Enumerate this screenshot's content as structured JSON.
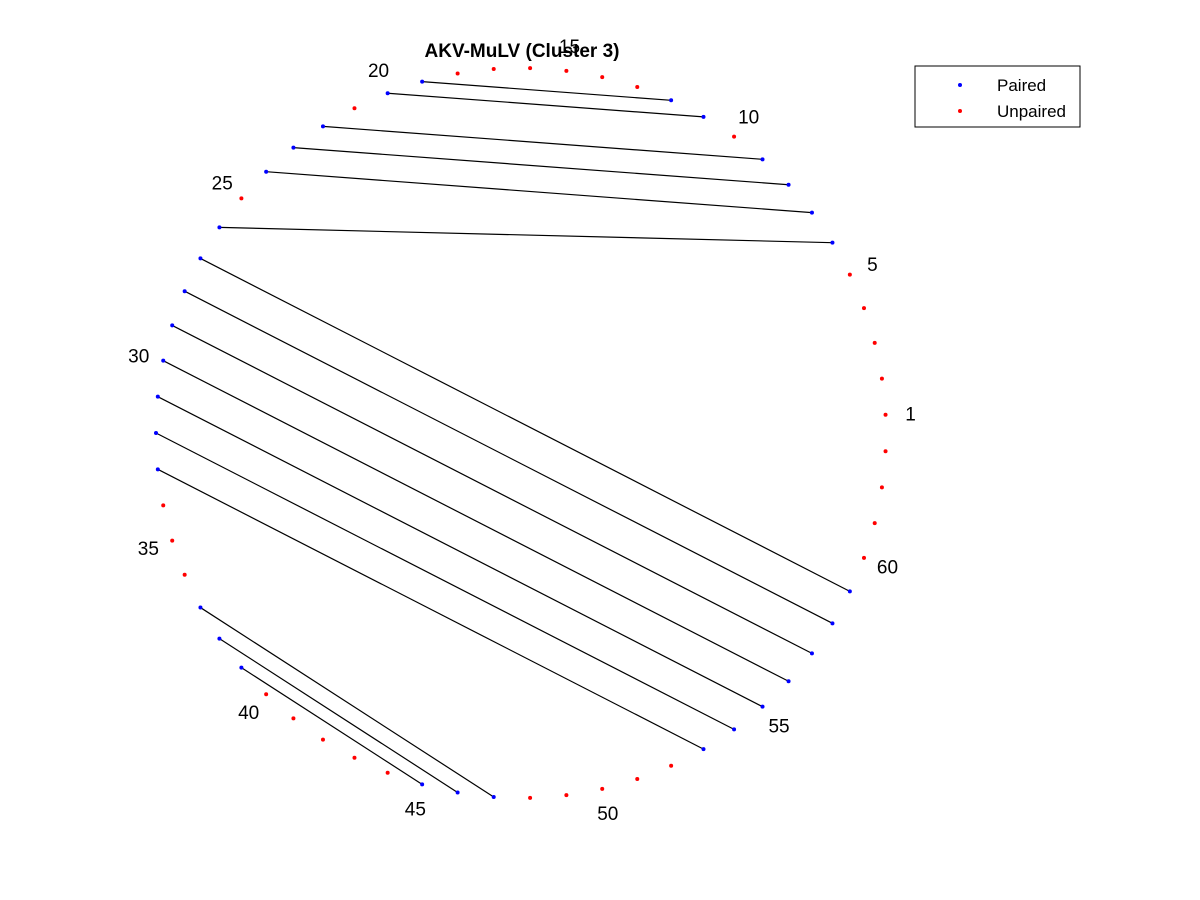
{
  "chart_data": {
    "type": "scatter",
    "title": "AKV-MuLV (Cluster 3)",
    "n_positions": 63,
    "position_labels": [
      1,
      5,
      10,
      15,
      20,
      25,
      30,
      35,
      40,
      45,
      50,
      55,
      60
    ],
    "pairs": [
      [
        6,
        26
      ],
      [
        7,
        24
      ],
      [
        8,
        23
      ],
      [
        9,
        22
      ],
      [
        11,
        20
      ],
      [
        12,
        19
      ],
      [
        27,
        59
      ],
      [
        28,
        58
      ],
      [
        29,
        57
      ],
      [
        30,
        56
      ],
      [
        31,
        55
      ],
      [
        32,
        54
      ],
      [
        33,
        53
      ],
      [
        37,
        47
      ],
      [
        38,
        46
      ],
      [
        39,
        45
      ]
    ],
    "series": [
      {
        "name": "Paired",
        "color": "#0000ff",
        "positions": [
          6,
          7,
          8,
          9,
          11,
          12,
          19,
          20,
          22,
          23,
          24,
          26,
          27,
          28,
          29,
          30,
          31,
          32,
          33,
          37,
          38,
          39,
          45,
          46,
          47,
          53,
          54,
          55,
          56,
          57,
          58,
          59
        ]
      },
      {
        "name": "Unpaired",
        "color": "#ff0000",
        "positions": [
          1,
          2,
          3,
          4,
          5,
          10,
          13,
          14,
          15,
          16,
          17,
          18,
          21,
          25,
          34,
          35,
          36,
          40,
          41,
          42,
          43,
          44,
          48,
          49,
          50,
          51,
          52,
          60,
          61,
          62,
          63
        ]
      }
    ],
    "legend": {
      "position": "top-right",
      "entries": [
        "Paired",
        "Unpaired"
      ]
    },
    "grid": false
  }
}
